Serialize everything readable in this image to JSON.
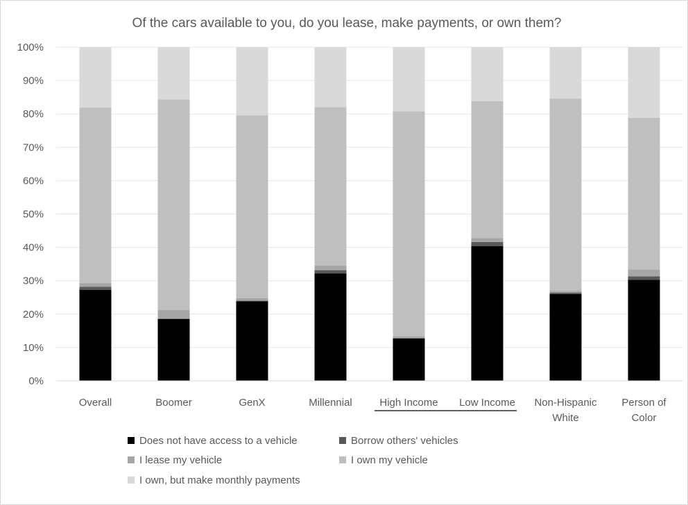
{
  "chart_data": {
    "type": "bar",
    "stacked": true,
    "percent_stacked": true,
    "title": "Of the cars available to you, do you lease, make payments, or own them?",
    "xlabel": "",
    "ylabel": "",
    "ylim": [
      0,
      100
    ],
    "y_ticks": [
      "0%",
      "10%",
      "20%",
      "30%",
      "40%",
      "50%",
      "60%",
      "70%",
      "80%",
      "90%",
      "100%"
    ],
    "categories": [
      [
        "Overall"
      ],
      [
        "Boomer"
      ],
      [
        "GenX"
      ],
      [
        "Millennial"
      ],
      [
        "High Income"
      ],
      [
        "Low Income"
      ],
      [
        "Non-Hispanic",
        "White"
      ],
      [
        "Person of",
        "Color"
      ]
    ],
    "series": [
      {
        "name": "Does not have access to a vehicle",
        "color": "#000000",
        "values": [
          27.3,
          18.5,
          23.8,
          32.2,
          12.7,
          40.4,
          26.0,
          30.3
        ]
      },
      {
        "name": "Borrow others' vehicles",
        "color": "#595959",
        "values": [
          0.9,
          0.1,
          0.2,
          1.0,
          0.1,
          1.2,
          0.4,
          1.0
        ]
      },
      {
        "name": "I lease my vehicle",
        "color": "#a6a6a6",
        "values": [
          1.1,
          2.6,
          0.8,
          1.3,
          0.5,
          1.2,
          0.6,
          2.1
        ]
      },
      {
        "name": "I own my vehicle",
        "color": "#bfbfbf",
        "values": [
          52.6,
          63.1,
          54.8,
          47.5,
          67.5,
          41.0,
          57.6,
          45.4
        ]
      },
      {
        "name": "I own, but make monthly payments",
        "color": "#d9d9d9",
        "values": [
          18.1,
          15.7,
          20.4,
          18.0,
          19.2,
          16.2,
          15.4,
          21.2
        ]
      }
    ],
    "grid": true,
    "legend_position": "bottom",
    "annotations": [
      "underline spanning High Income and Low Income"
    ]
  }
}
